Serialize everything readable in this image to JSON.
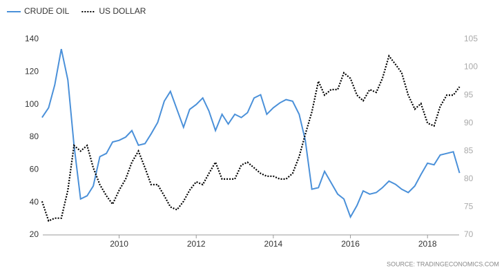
{
  "chart_data": {
    "type": "line",
    "source": "SOURCE: TRADINGECONOMICS.COM",
    "x": [
      2008.0,
      2008.17,
      2008.33,
      2008.5,
      2008.67,
      2008.83,
      2009.0,
      2009.17,
      2009.33,
      2009.5,
      2009.67,
      2009.83,
      2010.0,
      2010.17,
      2010.33,
      2010.5,
      2010.67,
      2010.83,
      2011.0,
      2011.17,
      2011.33,
      2011.5,
      2011.67,
      2011.83,
      2012.0,
      2012.17,
      2012.33,
      2012.5,
      2012.67,
      2012.83,
      2013.0,
      2013.17,
      2013.33,
      2013.5,
      2013.67,
      2013.83,
      2014.0,
      2014.17,
      2014.33,
      2014.5,
      2014.67,
      2014.83,
      2015.0,
      2015.17,
      2015.33,
      2015.5,
      2015.67,
      2015.83,
      2016.0,
      2016.17,
      2016.33,
      2016.5,
      2016.67,
      2016.83,
      2017.0,
      2017.17,
      2017.33,
      2017.5,
      2017.67,
      2017.83,
      2018.0,
      2018.17,
      2018.33,
      2018.5,
      2018.67,
      2018.83
    ],
    "xlim": [
      2008.02,
      2018.82
    ],
    "xticks": [
      2010,
      2012,
      2014,
      2016,
      2018
    ],
    "ylim": [
      20,
      140
    ],
    "yticks": [
      20,
      40,
      60,
      80,
      100,
      120,
      140
    ],
    "y2lim": [
      70,
      105
    ],
    "y2ticks": [
      70,
      75,
      80,
      85,
      90,
      95,
      100,
      105
    ],
    "grid": false,
    "legend": "top-left",
    "series": [
      {
        "name": "CRUDE OIL",
        "color": "#4a90d9",
        "style": "solid",
        "values": [
          92,
          98,
          112,
          134,
          115,
          75,
          42,
          44,
          50,
          68,
          70,
          77,
          78,
          80,
          84,
          75,
          76,
          82,
          89,
          102,
          108,
          97,
          86,
          97,
          100,
          104,
          96,
          84,
          94,
          88,
          94,
          92,
          95,
          104,
          106,
          94,
          98,
          101,
          103,
          102,
          94,
          78,
          48,
          49,
          59,
          52,
          45,
          42,
          31,
          38,
          47,
          45,
          46,
          49,
          53,
          51,
          48,
          46,
          50,
          57,
          64,
          63,
          69,
          70,
          71,
          58
        ]
      },
      {
        "name": "US DOLLAR",
        "color": "#000000",
        "style": "dotted",
        "axis": "y2",
        "values": [
          76,
          72.5,
          73,
          73,
          78,
          86,
          85,
          86,
          82,
          79,
          77,
          75.5,
          78,
          80,
          83,
          85,
          82,
          79,
          79,
          77,
          75,
          74.5,
          76,
          78,
          79.5,
          79,
          81,
          83,
          80,
          80,
          80,
          82.5,
          83,
          82,
          81,
          80.5,
          80.5,
          80,
          80,
          81,
          84,
          88,
          92,
          97.5,
          95,
          96,
          96,
          99,
          98,
          95,
          94,
          96,
          95.5,
          98,
          102,
          100.5,
          99,
          95,
          92.5,
          93.5,
          90,
          89.5,
          93,
          95,
          95,
          96.5
        ]
      }
    ]
  }
}
